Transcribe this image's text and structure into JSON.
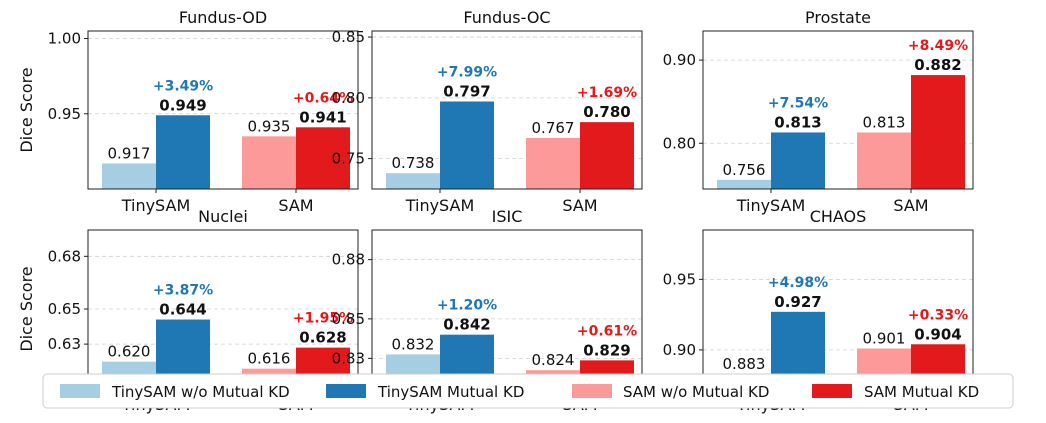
{
  "chart_data": {
    "type": "bar",
    "ylabel": "Dice Score",
    "groups": [
      "TinySAM",
      "SAM"
    ],
    "legend": [
      {
        "name": "TinySAM w/o Mutual KD",
        "color": "#a6cee3"
      },
      {
        "name": "TinySAM Mutual KD",
        "color": "#1f78b4"
      },
      {
        "name": "SAM w/o Mutual KD",
        "color": "#fb9a99"
      },
      {
        "name": "SAM Mutual KD",
        "color": "#e31a1c"
      }
    ],
    "gain_colors": {
      "TinySAM": "#1f78b4",
      "SAM": "#e31a1c"
    },
    "grid": true,
    "legend_position": "bottom",
    "panels": [
      {
        "title": "Fundus-OD",
        "ylim": [
          0.9,
          1.005
        ],
        "yticks": [
          0.95,
          1.0
        ],
        "ytick_labels": [
          "0.95",
          "1.00"
        ],
        "values": {
          "TinySAM": [
            0.917,
            0.949
          ],
          "SAM": [
            0.935,
            0.941
          ]
        },
        "value_labels": {
          "TinySAM": [
            "0.917",
            "0.949"
          ],
          "SAM": [
            "0.935",
            "0.941"
          ]
        },
        "gains": {
          "TinySAM": "+3.49%",
          "SAM": "+0.64%"
        }
      },
      {
        "title": "Fundus-OC",
        "ylim": [
          0.725,
          0.855
        ],
        "yticks": [
          0.75,
          0.8,
          0.85
        ],
        "ytick_labels": [
          "0.75",
          "0.80",
          "0.85"
        ],
        "values": {
          "TinySAM": [
            0.738,
            0.797
          ],
          "SAM": [
            0.767,
            0.78
          ]
        },
        "value_labels": {
          "TinySAM": [
            "0.738",
            "0.797"
          ],
          "SAM": [
            "0.767",
            "0.780"
          ]
        },
        "gains": {
          "TinySAM": "+7.99%",
          "SAM": "+1.69%"
        }
      },
      {
        "title": "Prostate",
        "ylim": [
          0.745,
          0.935
        ],
        "yticks": [
          0.8,
          0.9
        ],
        "ytick_labels": [
          "0.80",
          "0.90"
        ],
        "values": {
          "TinySAM": [
            0.756,
            0.813
          ],
          "SAM": [
            0.813,
            0.882
          ]
        },
        "value_labels": {
          "TinySAM": [
            "0.756",
            "0.813"
          ],
          "SAM": [
            "0.813",
            "0.882"
          ]
        },
        "gains": {
          "TinySAM": "+7.54%",
          "SAM": "+8.49%"
        }
      },
      {
        "title": "Nuclei",
        "ylim": [
          0.605,
          0.695
        ],
        "yticks": [
          0.63,
          0.65,
          0.68
        ],
        "ytick_labels": [
          "0.63",
          "0.65",
          "0.68"
        ],
        "values": {
          "TinySAM": [
            0.62,
            0.644
          ],
          "SAM": [
            0.616,
            0.628
          ]
        },
        "value_labels": {
          "TinySAM": [
            "0.620",
            "0.644"
          ],
          "SAM": [
            "0.616",
            "0.628"
          ]
        },
        "gains": {
          "TinySAM": "+3.87%",
          "SAM": "+1.95%"
        }
      },
      {
        "title": "ISIC",
        "ylim": [
          0.815,
          0.895
        ],
        "yticks": [
          0.83,
          0.85,
          0.88
        ],
        "ytick_labels": [
          "0.83",
          "0.85",
          "0.88"
        ],
        "values": {
          "TinySAM": [
            0.832,
            0.842
          ],
          "SAM": [
            0.824,
            0.829
          ]
        },
        "value_labels": {
          "TinySAM": [
            "0.832",
            "0.842"
          ],
          "SAM": [
            "0.824",
            "0.829"
          ]
        },
        "gains": {
          "TinySAM": "+1.20%",
          "SAM": "+0.61%"
        }
      },
      {
        "title": "CHAOS",
        "ylim": [
          0.873,
          0.985
        ],
        "yticks": [
          0.9,
          0.95
        ],
        "ytick_labels": [
          "0.90",
          "0.95"
        ],
        "values": {
          "TinySAM": [
            0.883,
            0.927
          ],
          "SAM": [
            0.901,
            0.904
          ]
        },
        "value_labels": {
          "TinySAM": [
            "0.883",
            "0.927"
          ],
          "SAM": [
            "0.901",
            "0.904"
          ]
        },
        "gains": {
          "TinySAM": "+4.98%",
          "SAM": "+0.33%"
        }
      }
    ]
  }
}
